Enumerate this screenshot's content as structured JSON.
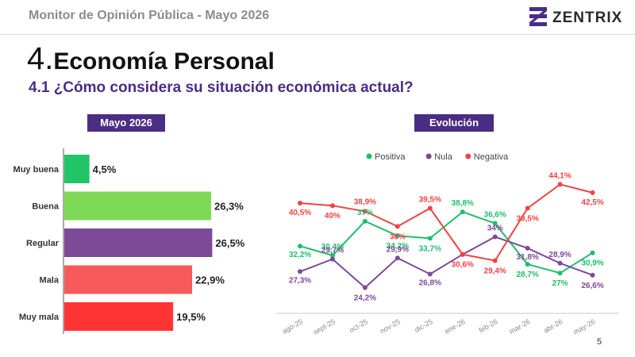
{
  "header": {
    "title": "Monitor de Opinión Pública - Mayo 2026",
    "brand": "ZENTRIX"
  },
  "section": {
    "number": "4.",
    "title": "Economía Personal"
  },
  "question": "4.1 ¿Cómo considera su situación económica actual?",
  "page_number": "5",
  "colors": {
    "accent_purple": "#4b2d84",
    "positiva": "#1fbf6b",
    "nula": "#7d4a98",
    "negativa": "#ef4444"
  },
  "chart_data": [
    {
      "type": "bar",
      "orientation": "horizontal",
      "title": "Mayo 2026",
      "categories": [
        "Muy buena",
        "Buena",
        "Regular",
        "Mala",
        "Muy mala"
      ],
      "values": [
        4.5,
        26.3,
        26.5,
        22.9,
        19.5
      ],
      "value_labels": [
        "4,5%",
        "26,3%",
        "26,5%",
        "22,9%",
        "19,5%"
      ],
      "bar_colors": [
        "#21c467",
        "#7ed957",
        "#7d4a98",
        "#f65a5a",
        "#ff3535"
      ],
      "xlim": [
        0,
        30
      ],
      "grid": false
    },
    {
      "type": "line",
      "title": "Evolución",
      "x": [
        "ago-25",
        "sept-25",
        "oct-25",
        "nov-25",
        "dic-25",
        "ene-26",
        "feb-26",
        "mar-26",
        "abr-26",
        "may-26"
      ],
      "legend_position": "top",
      "ylim": [
        20,
        46
      ],
      "grid": false,
      "series": [
        {
          "name": "Positiva",
          "color": "#1fbf6b",
          "values": [
            32.2,
            30.4,
            37,
            34.2,
            33.7,
            38.8,
            36.6,
            28.7,
            27,
            30.9
          ],
          "labels": [
            "32,2%",
            "30,4%",
            "37%",
            "34,2%",
            "33,7%",
            "38,8%",
            "36,6%",
            "28,7%",
            "27%",
            "30,9%"
          ]
        },
        {
          "name": "Nula",
          "color": "#7d4a98",
          "values": [
            27.3,
            29.7,
            24.2,
            29.9,
            26.8,
            30.6,
            34,
            31.8,
            28.9,
            26.6
          ],
          "labels": [
            "27,3%",
            "29,7%",
            "24,2%",
            "29,9%",
            "26,8%",
            "",
            "34%",
            "31,8%",
            "28,9%",
            "26,6%"
          ]
        },
        {
          "name": "Negativa",
          "color": "#ef4444",
          "values": [
            40.5,
            40,
            38.9,
            36,
            39.5,
            30.6,
            29.4,
            39.5,
            44.1,
            42.5
          ],
          "labels": [
            "40,5%",
            "40%",
            "38,9%",
            "36%",
            "39,5%",
            "30,6%",
            "29,4%",
            "39,5%",
            "44,1%",
            "42,5%"
          ]
        }
      ]
    }
  ]
}
